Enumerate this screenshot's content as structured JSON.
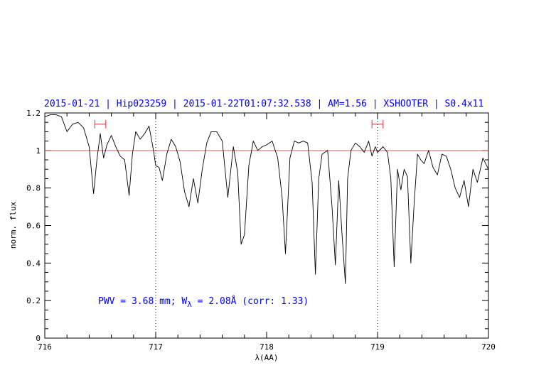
{
  "title": "2015-01-21 | Hip023259 | 2015-01-22T01:07:32.538 | AM=1.56 | XSHOOTER | S0.4x11",
  "chart_data": {
    "type": "line",
    "xlabel": "λ(AA)",
    "ylabel": "norm. flux",
    "xlim": [
      716,
      720
    ],
    "ylim": [
      0,
      1.2
    ],
    "x_ticks": [
      "716",
      "717",
      "718",
      "719",
      "720"
    ],
    "y_ticks": [
      "0",
      "0.2",
      "0.4",
      "0.6",
      "0.8",
      "1",
      "1.2"
    ],
    "reference_line_y": 1.0,
    "vertical_markers_x": [
      717.0,
      719.0
    ],
    "range_markers": [
      {
        "x_from": 716.45,
        "x_to": 716.55,
        "y": 1.14
      },
      {
        "x_from": 718.95,
        "x_to": 719.05,
        "y": 1.14
      }
    ],
    "annotation": {
      "pwv_text": "PWV = 3.68 mm; W",
      "lambda_sub": "λ",
      "rest_text": " = 2.08Å (corr: 1.33)"
    },
    "series": [
      {
        "color": "#000000",
        "x": [
          716.0,
          716.05,
          716.1,
          716.15,
          716.2,
          716.25,
          716.3,
          716.35,
          716.4,
          716.44,
          716.47,
          716.5,
          716.53,
          716.56,
          716.6,
          716.64,
          716.68,
          716.72,
          716.76,
          716.79,
          716.82,
          716.86,
          716.9,
          716.94,
          716.98,
          717.0,
          717.03,
          717.06,
          717.1,
          717.14,
          717.18,
          717.22,
          717.26,
          717.3,
          717.34,
          717.38,
          717.42,
          717.46,
          717.5,
          717.55,
          717.6,
          717.65,
          717.7,
          717.74,
          717.77,
          717.8,
          717.84,
          717.88,
          717.92,
          717.96,
          718.0,
          718.05,
          718.1,
          718.14,
          718.17,
          718.21,
          718.25,
          718.29,
          718.33,
          718.37,
          718.41,
          718.44,
          718.47,
          718.5,
          718.55,
          718.59,
          718.62,
          718.65,
          718.68,
          718.71,
          718.73,
          718.76,
          718.8,
          718.84,
          718.88,
          718.92,
          718.95,
          718.98,
          719.0,
          719.05,
          719.09,
          719.12,
          719.15,
          719.18,
          719.21,
          719.24,
          719.27,
          719.3,
          719.33,
          719.36,
          719.39,
          719.42,
          719.46,
          719.5,
          719.54,
          719.58,
          719.62,
          719.66,
          719.7,
          719.74,
          719.78,
          719.82,
          719.86,
          719.9,
          719.95,
          720.0
        ],
        "y": [
          1.18,
          1.19,
          1.19,
          1.18,
          1.1,
          1.14,
          1.15,
          1.12,
          1.02,
          0.77,
          0.95,
          1.09,
          0.96,
          1.03,
          1.08,
          1.02,
          0.97,
          0.95,
          0.76,
          0.98,
          1.1,
          1.06,
          1.09,
          1.13,
          1.0,
          0.92,
          0.91,
          0.84,
          0.98,
          1.06,
          1.02,
          0.94,
          0.78,
          0.7,
          0.85,
          0.72,
          0.9,
          1.04,
          1.1,
          1.1,
          1.05,
          0.75,
          1.02,
          0.88,
          0.5,
          0.55,
          0.92,
          1.05,
          1.0,
          1.02,
          1.03,
          1.05,
          0.96,
          0.75,
          0.45,
          0.96,
          1.05,
          1.04,
          1.05,
          1.04,
          0.83,
          0.34,
          0.85,
          0.98,
          1.0,
          0.7,
          0.39,
          0.84,
          0.55,
          0.29,
          0.85,
          1.0,
          1.04,
          1.02,
          0.99,
          1.05,
          0.97,
          1.02,
          0.99,
          1.02,
          0.99,
          0.85,
          0.38,
          0.9,
          0.79,
          0.9,
          0.86,
          0.4,
          0.72,
          0.98,
          0.95,
          0.93,
          1.0,
          0.91,
          0.87,
          0.98,
          0.97,
          0.9,
          0.8,
          0.75,
          0.84,
          0.7,
          0.9,
          0.83,
          0.96,
          0.9
        ]
      }
    ]
  }
}
